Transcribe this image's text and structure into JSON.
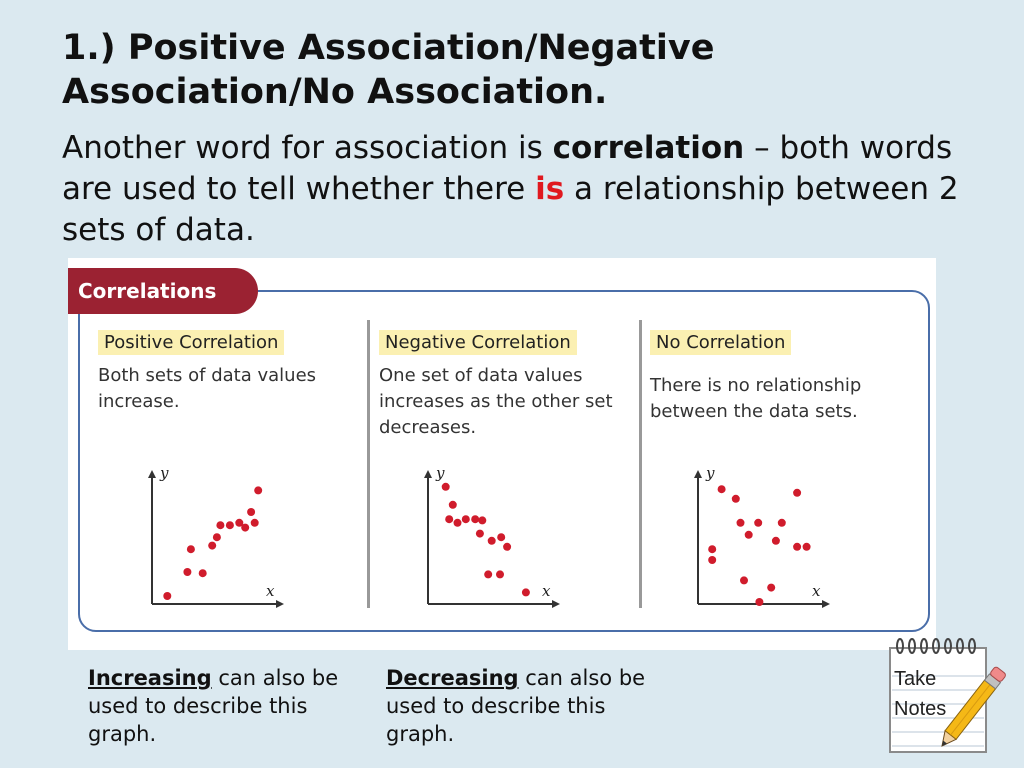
{
  "slide": {
    "title": "1.) Positive Association/Negative Association/No Association.",
    "intro_part1": "Another word for association is ",
    "intro_bold": "correlation",
    "intro_part2": " – both words are used to tell whether there ",
    "intro_red": "is",
    "intro_part3": " a relationship between 2 sets of data."
  },
  "figure": {
    "tab_label": "Correlations",
    "columns": [
      {
        "heading": "Positive Correlation",
        "description": "Both sets of data values increase.",
        "x_label": "x",
        "y_label": "y"
      },
      {
        "heading": "Negative Correlation",
        "description": "One set of data values increases as the other set decreases.",
        "x_label": "x",
        "y_label": "y"
      },
      {
        "heading": "No Correlation",
        "description": "There is no relationship between the data sets.",
        "x_label": "x",
        "y_label": "y"
      }
    ]
  },
  "chart_data": [
    {
      "type": "scatter",
      "title": "Positive Correlation",
      "xlabel": "x",
      "ylabel": "y",
      "xlim": [
        0,
        10
      ],
      "ylim": [
        0,
        10
      ],
      "points": [
        [
          1.3,
          0.5
        ],
        [
          3.0,
          2.5
        ],
        [
          3.3,
          4.4
        ],
        [
          4.3,
          2.4
        ],
        [
          5.1,
          4.7
        ],
        [
          5.5,
          5.4
        ],
        [
          5.8,
          6.4
        ],
        [
          6.6,
          6.4
        ],
        [
          7.4,
          6.6
        ],
        [
          7.9,
          6.2
        ],
        [
          8.4,
          7.5
        ],
        [
          8.7,
          6.6
        ],
        [
          9.0,
          9.3
        ]
      ],
      "dot_color": "#d01c2c"
    },
    {
      "type": "scatter",
      "title": "Negative Correlation",
      "xlabel": "x",
      "ylabel": "y",
      "xlim": [
        0,
        10
      ],
      "ylim": [
        0,
        10
      ],
      "points": [
        [
          1.5,
          9.6
        ],
        [
          2.1,
          8.1
        ],
        [
          1.8,
          6.9
        ],
        [
          2.5,
          6.6
        ],
        [
          3.2,
          6.9
        ],
        [
          4.0,
          6.9
        ],
        [
          4.6,
          6.8
        ],
        [
          4.4,
          5.7
        ],
        [
          5.4,
          5.1
        ],
        [
          6.2,
          5.4
        ],
        [
          5.1,
          2.3
        ],
        [
          6.7,
          4.6
        ],
        [
          6.1,
          2.3
        ],
        [
          8.3,
          0.8
        ]
      ],
      "dot_color": "#d01c2c"
    },
    {
      "type": "scatter",
      "title": "No Correlation",
      "xlabel": "x",
      "ylabel": "y",
      "xlim": [
        0,
        10
      ],
      "ylim": [
        0,
        10
      ],
      "points": [
        [
          2.0,
          9.4
        ],
        [
          3.2,
          8.6
        ],
        [
          1.2,
          4.4
        ],
        [
          1.2,
          3.5
        ],
        [
          3.6,
          6.6
        ],
        [
          4.3,
          5.6
        ],
        [
          5.1,
          6.6
        ],
        [
          3.9,
          1.8
        ],
        [
          5.2,
          0
        ],
        [
          6.6,
          5.1
        ],
        [
          6.2,
          1.2
        ],
        [
          7.1,
          6.6
        ],
        [
          8.4,
          9.1
        ],
        [
          8.4,
          4.6
        ],
        [
          9.2,
          4.6
        ]
      ],
      "dot_color": "#d01c2c"
    }
  ],
  "notes": {
    "left_bold": "Increasing",
    "left_rest": " can also be used to describe this graph.",
    "right_bold": "Decreasing",
    "right_rest": " can also be used to describe this graph."
  },
  "notepad": {
    "line1": "Take",
    "line2": "Notes",
    "icon": "notepad-pencil-icon"
  }
}
